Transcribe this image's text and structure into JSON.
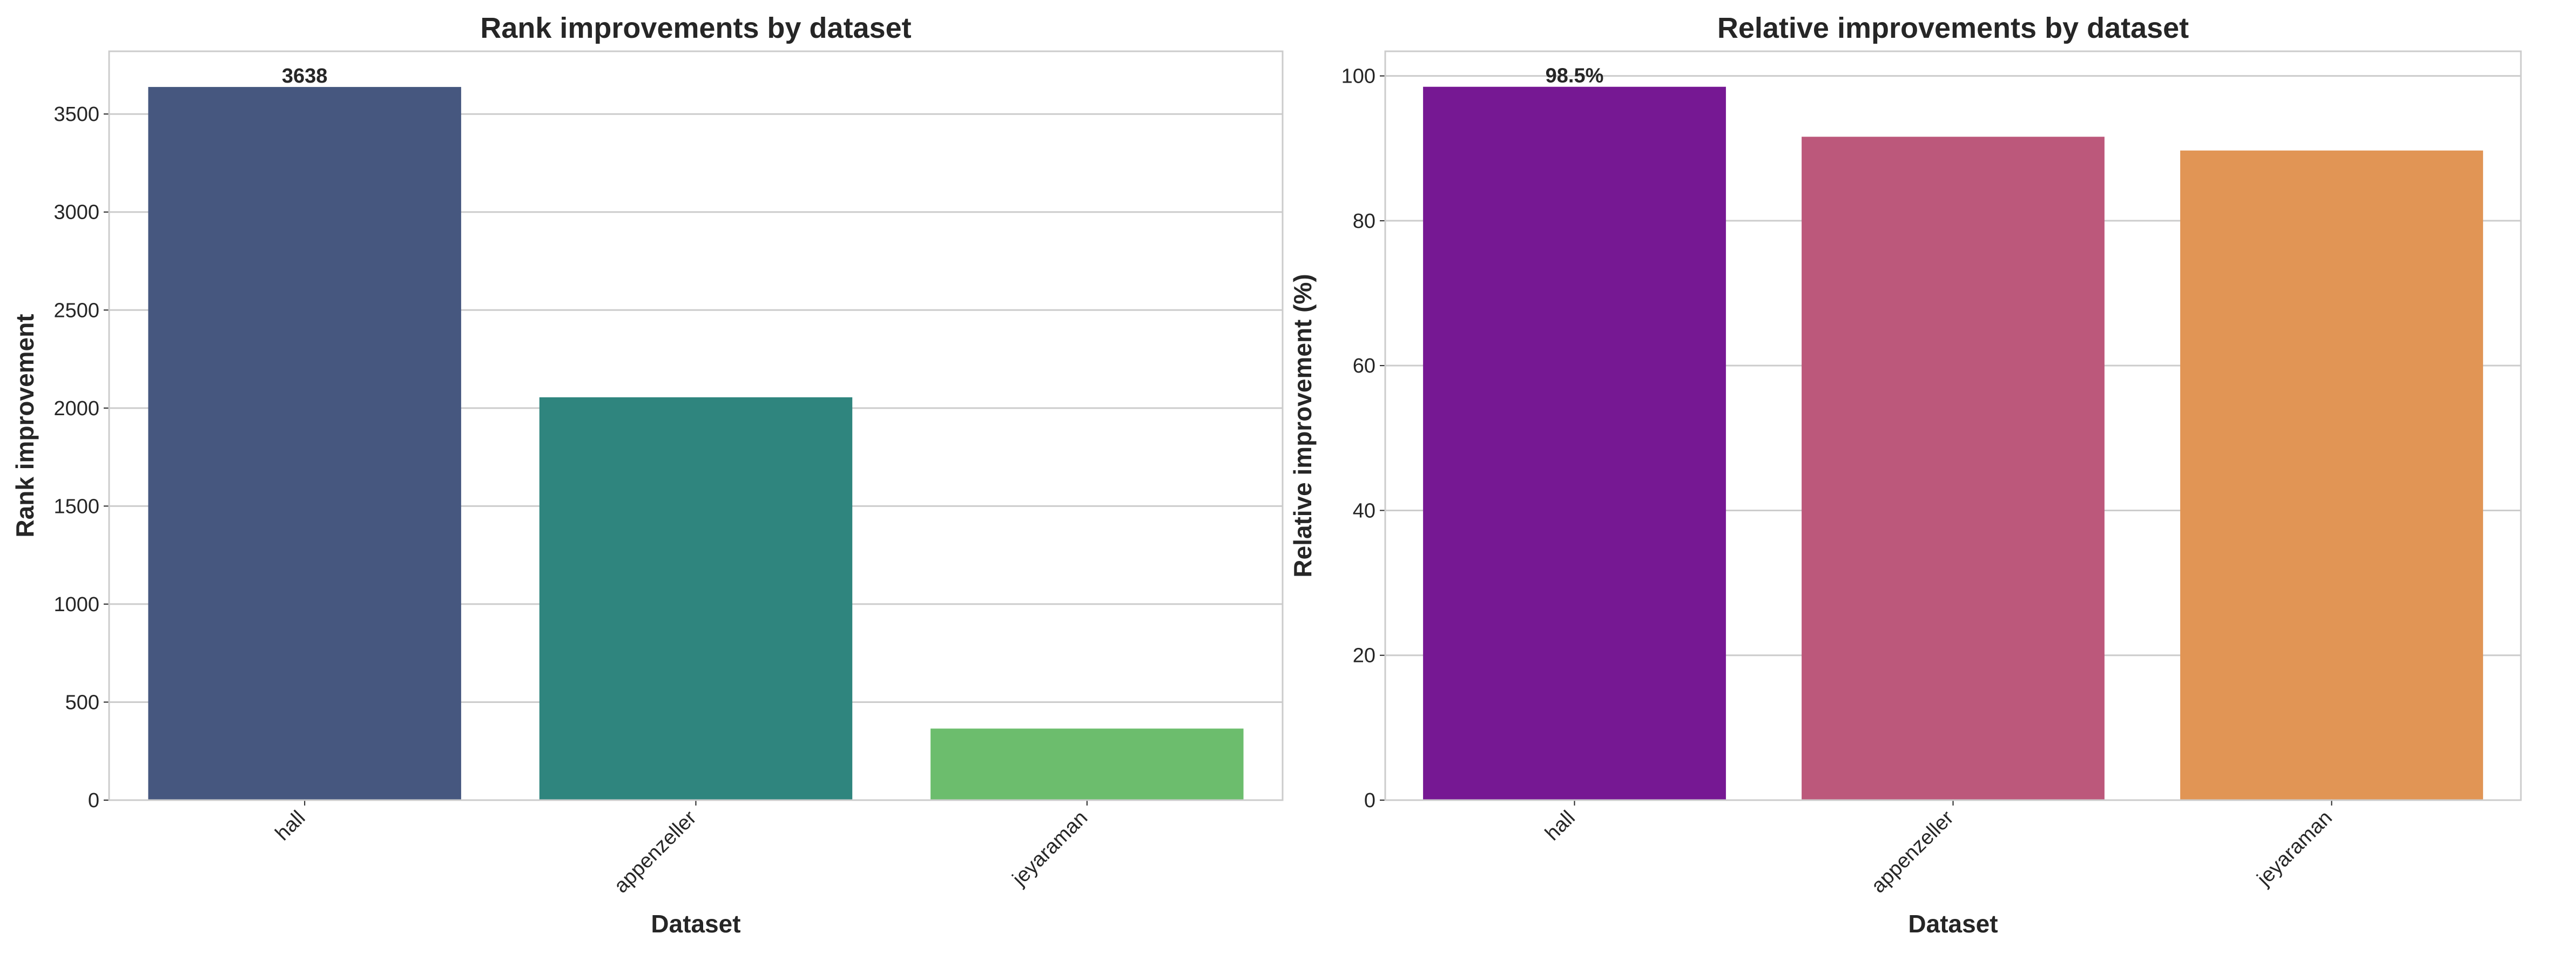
{
  "chart_data": [
    {
      "type": "bar",
      "title": "Rank improvements by dataset",
      "xlabel": "Dataset",
      "ylabel": "Rank improvement",
      "categories": [
        "hall",
        "appenzeller",
        "jeyaraman"
      ],
      "values": [
        3638,
        2055,
        365
      ],
      "colors": [
        "#46577f",
        "#2f857e",
        "#6cbd6d"
      ],
      "ylim": [
        0,
        3820
      ],
      "yticks": [
        0,
        500,
        1000,
        1500,
        2000,
        2500,
        3000,
        3500
      ],
      "data_labels": [
        {
          "index": 0,
          "text": "3638"
        }
      ],
      "grid": true
    },
    {
      "type": "bar",
      "title": "Relative improvements by dataset",
      "xlabel": "Dataset",
      "ylabel": "Relative improvement (%)",
      "categories": [
        "hall",
        "appenzeller",
        "jeyaraman"
      ],
      "values": [
        98.5,
        91.6,
        89.7
      ],
      "colors": [
        "#761893",
        "#bc587b",
        "#e19555"
      ],
      "ylim": [
        0,
        103.4
      ],
      "yticks": [
        0,
        20,
        40,
        60,
        80,
        100
      ],
      "data_labels": [
        {
          "index": 0,
          "text": "98.5%"
        }
      ],
      "grid": true
    }
  ]
}
